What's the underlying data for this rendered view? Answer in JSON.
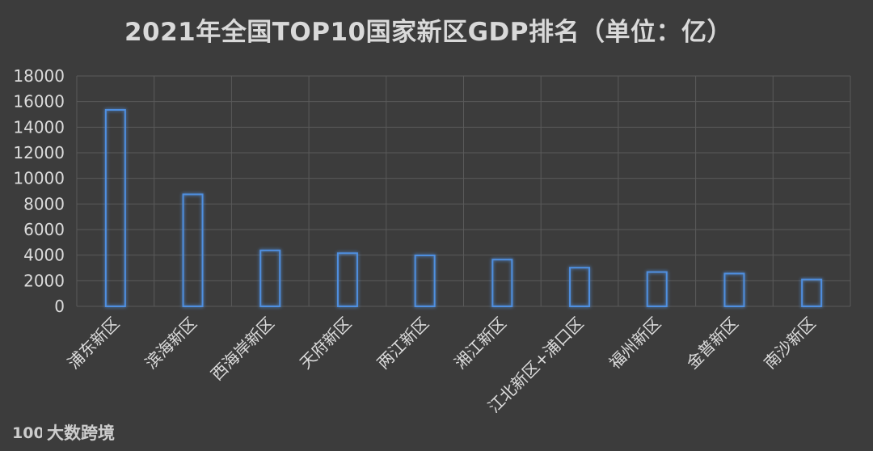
{
  "chart_data": {
    "type": "bar",
    "title": "2021年全国TOP10国家新区GDP排名（单位：亿）",
    "categories": [
      "浦东新区",
      "滨海新区",
      "西海岸新区",
      "天府新区",
      "两江新区",
      "湘江新区",
      "江北新区+浦口区",
      "福州新区",
      "金普新区",
      "南沙新区"
    ],
    "values": [
      15350,
      8750,
      4370,
      4150,
      3980,
      3650,
      3020,
      2680,
      2560,
      2100
    ],
    "ylim": [
      0,
      18000
    ],
    "yticks": [
      0,
      2000,
      4000,
      6000,
      8000,
      10000,
      12000,
      14000,
      16000,
      18000
    ],
    "grid": true,
    "legend": "none",
    "colors": {
      "background": "#3c3c3c",
      "bar_stroke": "#4f8fe0",
      "bar_glow": "#2f6fc7",
      "grid": "#5a5a5a",
      "text": "#dcdcdc"
    }
  },
  "watermark": {
    "text": "大数跨境",
    "logo_text": "100"
  }
}
